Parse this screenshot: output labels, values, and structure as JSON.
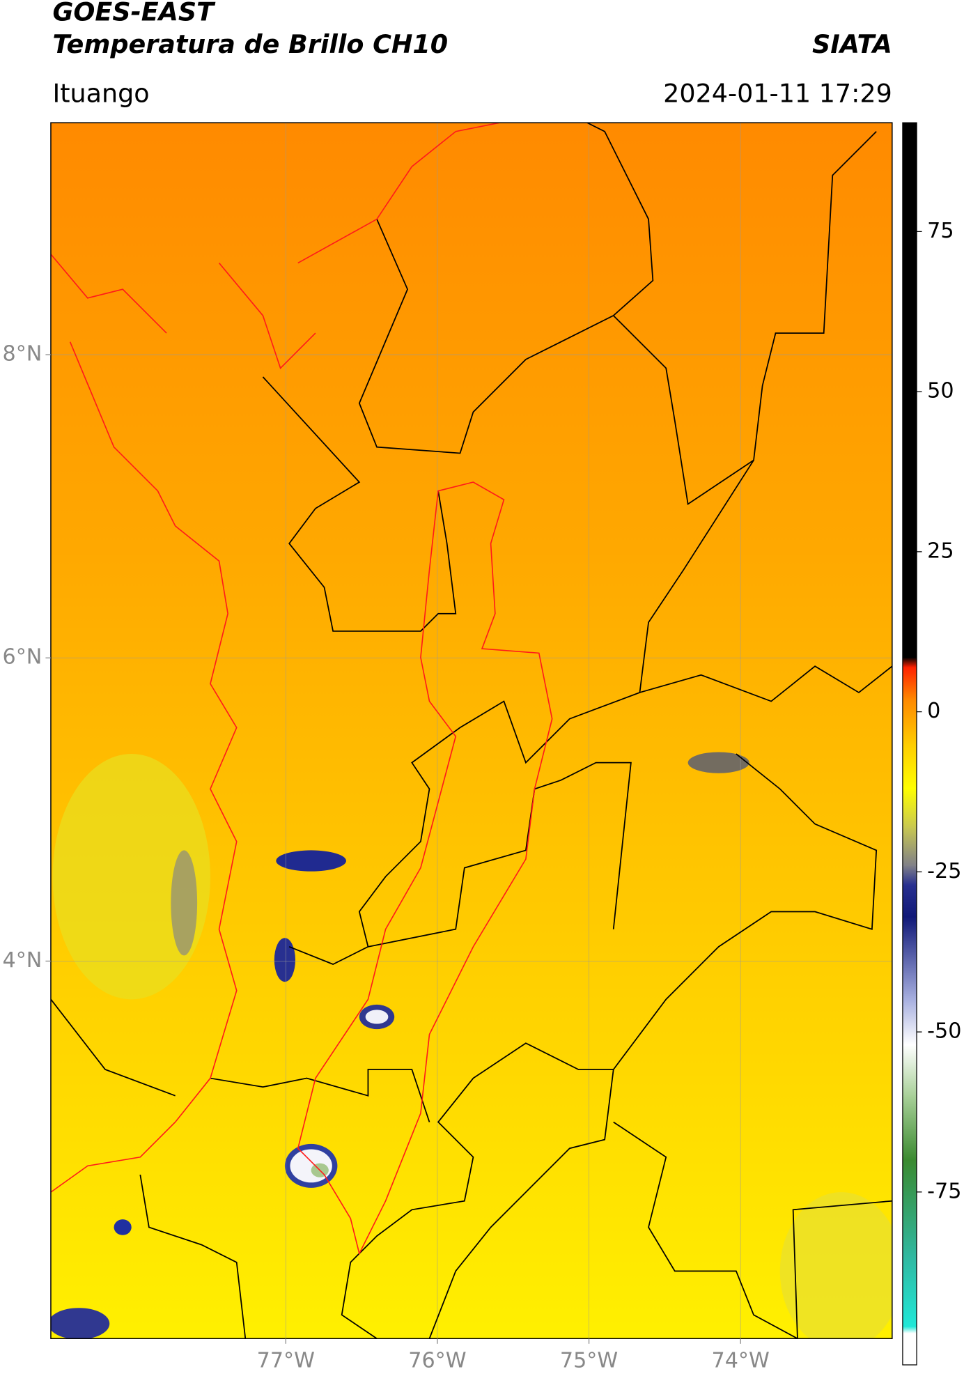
{
  "header": {
    "title": "GOES-EAST",
    "subtitle": "Temperatura de Brillo CH10",
    "source": "SIATA",
    "location": "Ituango",
    "datetime": "2024-01-11 17:29"
  },
  "chart_data": {
    "type": "map",
    "xlim": [
      -78.55,
      -73.0
    ],
    "ylim": [
      1.51,
      9.53
    ],
    "xticks": [
      {
        "value": -77,
        "label": "77°W"
      },
      {
        "value": -76,
        "label": "76°W"
      },
      {
        "value": -75,
        "label": "75°W"
      },
      {
        "value": -74,
        "label": "74°W"
      }
    ],
    "yticks": [
      {
        "value": 8,
        "label": "8°N"
      },
      {
        "value": 6,
        "label": "6°N"
      },
      {
        "value": 4,
        "label": "4°N"
      }
    ],
    "grid": true,
    "colorbar": {
      "lim": [
        -102,
        92
      ],
      "ticks": [
        75,
        50,
        25,
        0,
        -25,
        -50,
        -75
      ],
      "colorscale": [
        {
          "value": -102,
          "color": "#ffffff"
        },
        {
          "value": -97,
          "color": "#ffffff"
        },
        {
          "value": -96,
          "color": "#20e8d8"
        },
        {
          "value": -85,
          "color": "#30b8a0"
        },
        {
          "value": -70,
          "color": "#3a8a30"
        },
        {
          "value": -60,
          "color": "#a8d098"
        },
        {
          "value": -52,
          "color": "#ffffff"
        },
        {
          "value": -45,
          "color": "#a8b0e0"
        },
        {
          "value": -32,
          "color": "#101878"
        },
        {
          "value": -27,
          "color": "#283090"
        },
        {
          "value": -24,
          "color": "#808088"
        },
        {
          "value": -18,
          "color": "#c8c850"
        },
        {
          "value": -12,
          "color": "#ffff00"
        },
        {
          "value": -5,
          "color": "#ffcc00"
        },
        {
          "value": 2,
          "color": "#ff8800"
        },
        {
          "value": 7,
          "color": "#ff2000"
        },
        {
          "value": 8.5,
          "color": "#000000"
        },
        {
          "value": 92,
          "color": "#000000"
        }
      ]
    }
  }
}
